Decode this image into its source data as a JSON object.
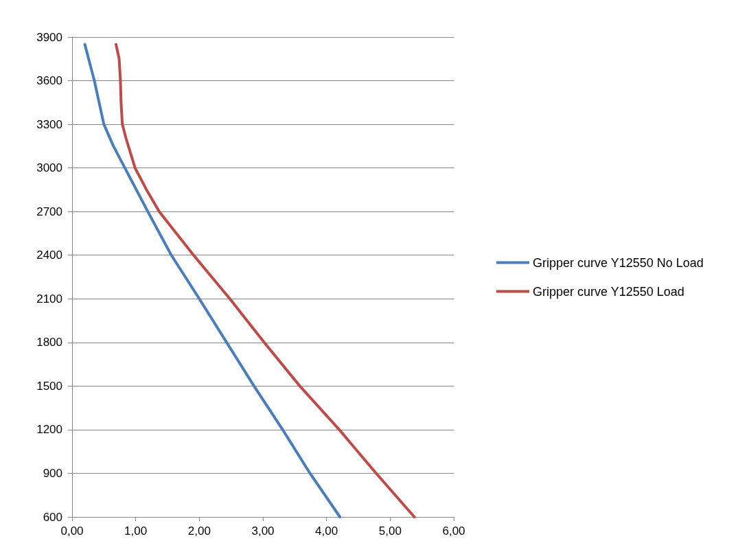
{
  "chart_data": {
    "type": "line",
    "legend": "right",
    "grid": "y",
    "marker": "none",
    "line_style": "solid",
    "xlim": [
      0,
      6
    ],
    "xticks": [
      {
        "value": 0,
        "label": "0,00"
      },
      {
        "value": 1,
        "label": "1,00"
      },
      {
        "value": 2,
        "label": "2,00"
      },
      {
        "value": 3,
        "label": "3,00"
      },
      {
        "value": 4,
        "label": "4,00"
      },
      {
        "value": 5,
        "label": "5,00"
      },
      {
        "value": 6,
        "label": "6,00"
      }
    ],
    "ylim": [
      600,
      3900
    ],
    "yticks": [
      600,
      900,
      1200,
      1500,
      1800,
      2100,
      2400,
      2700,
      3000,
      3300,
      3600,
      3900
    ],
    "series": [
      {
        "name": "Gripper curve Y12550 No Load",
        "color": "#4a7ebb",
        "x": [
          0.2,
          0.35,
          0.5,
          0.65,
          0.83,
          1.19,
          1.56,
          2.0,
          2.43,
          2.86,
          3.31,
          3.74,
          4.21
        ],
        "values": [
          3850,
          3600,
          3300,
          3150,
          3000,
          2700,
          2400,
          2100,
          1800,
          1500,
          1200,
          900,
          600
        ]
      },
      {
        "name": "Gripper curve Y12550 Load",
        "color": "#be4b48",
        "x": [
          0.69,
          0.74,
          0.76,
          0.77,
          0.79,
          0.85,
          0.92,
          0.99,
          1.17,
          1.37,
          1.91,
          2.48,
          3.02,
          3.58,
          4.2,
          4.78,
          5.38
        ],
        "values": [
          3850,
          3750,
          3600,
          3450,
          3300,
          3200,
          3100,
          3000,
          2850,
          2700,
          2400,
          2100,
          1800,
          1500,
          1200,
          900,
          600
        ]
      }
    ]
  }
}
